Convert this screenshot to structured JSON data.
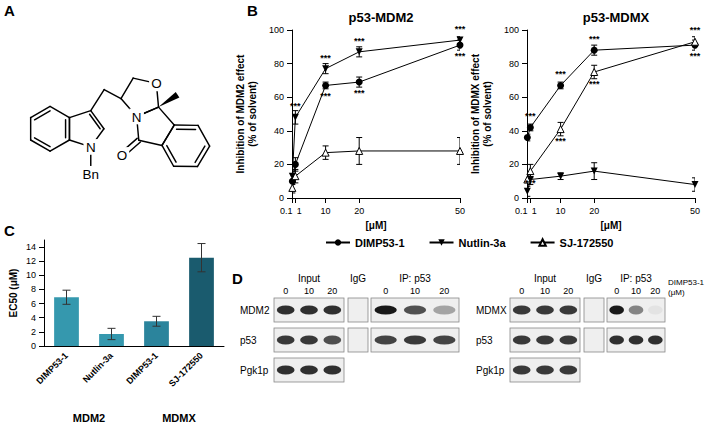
{
  "panels": [
    "A",
    "B",
    "C",
    "D"
  ],
  "structure": {
    "atom_labels": [
      "N",
      "Bn",
      "O",
      "N",
      "O"
    ]
  },
  "chart_data": [
    {
      "type": "line",
      "title": "p53-MDM2",
      "x_label": "[μM]",
      "y_label": "Inhibition of MDM2 effect\n(% of solvent)",
      "x": [
        0.1,
        1,
        10,
        20,
        50
      ],
      "xlim": [
        0,
        50
      ],
      "xticks": [
        0.1,
        1,
        10,
        20,
        50
      ],
      "ylim": [
        0,
        100
      ],
      "yticks": [
        0,
        20,
        40,
        60,
        80,
        100
      ],
      "legend": "bottom",
      "series": [
        {
          "name": "DIMP53-1",
          "color": "#000000",
          "marker": "circle",
          "values": [
            10,
            20,
            67,
            69,
            91
          ],
          "errors": [
            2,
            4,
            2,
            3,
            3
          ],
          "significance": [
            null,
            null,
            "***",
            "***",
            "***"
          ]
        },
        {
          "name": "Nutlin-3a",
          "color": "#000000",
          "marker": "triangle-down",
          "values": [
            13,
            48,
            77,
            87,
            94
          ],
          "errors": [
            3,
            4,
            3,
            3,
            2
          ],
          "significance": [
            null,
            "***",
            "***",
            "***",
            "***"
          ]
        },
        {
          "name": "SJ-172550",
          "color": "#000000",
          "marker": "triangle-open",
          "values": [
            6,
            13,
            27,
            28,
            28
          ],
          "errors": [
            3,
            4,
            4,
            8,
            8
          ],
          "significance": [
            null,
            null,
            null,
            null,
            null
          ]
        }
      ]
    },
    {
      "type": "line",
      "title": "p53-MDMX",
      "x_label": "[μM]",
      "y_label": "Inhibition of MDMX effect\n(% of solvent)",
      "x": [
        0.1,
        1,
        10,
        20,
        50
      ],
      "xlim": [
        0,
        50
      ],
      "xticks": [
        0.1,
        1,
        10,
        20,
        50
      ],
      "ylim": [
        0,
        100
      ],
      "yticks": [
        0,
        20,
        40,
        60,
        80,
        100
      ],
      "series": [
        {
          "name": "DIMP53-1",
          "color": "#000000",
          "marker": "circle",
          "values": [
            36,
            42,
            67,
            88,
            91
          ],
          "errors": [
            2,
            2,
            2,
            3,
            3
          ],
          "significance": [
            null,
            "***",
            "***",
            "***",
            "***"
          ]
        },
        {
          "name": "Nutlin-3a",
          "color": "#000000",
          "marker": "triangle-down",
          "values": [
            4,
            11,
            13,
            16,
            8
          ],
          "errors": [
            3,
            3,
            2,
            5,
            4
          ],
          "significance": [
            null,
            null,
            null,
            null,
            null
          ]
        },
        {
          "name": "SJ-172550",
          "color": "#000000",
          "marker": "triangle-open",
          "values": [
            11,
            16,
            41,
            75,
            93
          ],
          "errors": [
            3,
            4,
            4,
            4,
            3
          ],
          "significance": [
            null,
            "***",
            "***",
            "***",
            "***"
          ]
        }
      ]
    },
    {
      "type": "bar",
      "y_label": "EC50 (μM)",
      "categories": [
        "DIMP53-1",
        "Nutlin-3a",
        "DIMP53-1",
        "SJ-172550"
      ],
      "groups": [
        "MDM2",
        "MDM2",
        "MDMX",
        "MDMX"
      ],
      "values": [
        6.9,
        1.7,
        3.5,
        12.5
      ],
      "errors": [
        1.0,
        0.8,
        0.7,
        2.0
      ],
      "colors": [
        "#3598ae",
        "#3598ae",
        "#2b849c",
        "#1a5b6e"
      ],
      "ylim": [
        0,
        15
      ],
      "yticks": [
        0,
        2,
        4,
        6,
        8,
        10,
        12,
        14
      ]
    }
  ],
  "blots": [
    {
      "headers": [
        "Input",
        "IgG",
        "IP: p53"
      ],
      "lanes": [
        0,
        10,
        20
      ],
      "rows": [
        {
          "label": "MDM2",
          "input": [
            0.9,
            0.9,
            0.9
          ],
          "igg": 0,
          "ip": [
            1,
            0.75,
            0.35
          ]
        },
        {
          "label": "p53",
          "input": [
            0.85,
            0.85,
            0.75
          ],
          "igg": 0,
          "ip": [
            0.8,
            0.85,
            0.8
          ]
        },
        {
          "label": "Pgk1p",
          "input": [
            0.9,
            0.9,
            0.9
          ]
        }
      ]
    },
    {
      "headers": [
        "Input",
        "IgG",
        "IP: p53"
      ],
      "lanes": [
        0,
        10,
        20
      ],
      "treatment": [
        "DIMP53-1",
        "(μM)"
      ],
      "rows": [
        {
          "label": "MDMX",
          "input": [
            0.85,
            0.85,
            0.85
          ],
          "igg": 0,
          "ip": [
            1,
            0.5,
            0.05
          ]
        },
        {
          "label": "p53",
          "input": [
            0.85,
            0.85,
            0.85
          ],
          "igg": 0,
          "ip": [
            0.9,
            0.9,
            0.9
          ]
        },
        {
          "label": "Pgk1p",
          "input": [
            0.85,
            0.85,
            0.85
          ]
        }
      ]
    }
  ]
}
